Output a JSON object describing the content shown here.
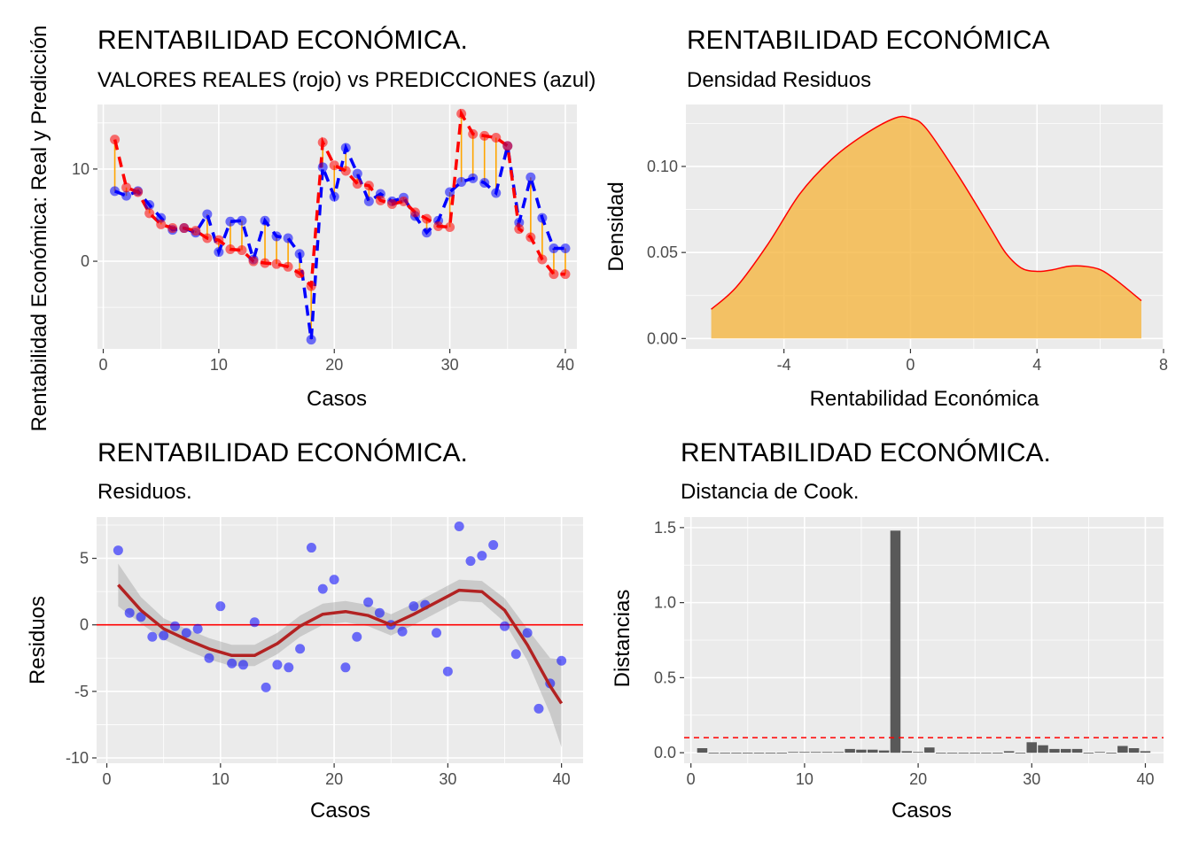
{
  "chart_data": [
    {
      "type": "line",
      "title": "RENTABILIDAD ECONÓMICA.",
      "subtitle": "VALORES REALES (rojo) vs PREDICCIONES (azul)",
      "xlabel": "Casos",
      "ylabel": "Rentabilidad Económica: Real y Predicción",
      "xlim": [
        -0.5,
        41.0
      ],
      "ylim": [
        -9.5,
        17.0
      ],
      "xticks": [
        0,
        10,
        20,
        30,
        40
      ],
      "yticks": [
        0,
        10
      ],
      "grid": true,
      "series": [
        {
          "key": "real",
          "color": "#ff0000",
          "x": [
            1,
            2,
            3,
            4,
            5,
            6,
            7,
            8,
            9,
            10,
            11,
            12,
            13,
            14,
            15,
            16,
            17,
            18,
            19,
            20,
            21,
            22,
            23,
            24,
            25,
            26,
            27,
            28,
            29,
            30,
            31,
            32,
            33,
            34,
            35,
            36,
            37,
            38,
            39,
            40
          ],
          "values": [
            13.2,
            8.0,
            7.5,
            5.2,
            4.0,
            3.6,
            3.6,
            3.3,
            2.5,
            2.3,
            1.3,
            1.2,
            0.0,
            -0.2,
            -0.3,
            -0.6,
            -1.3,
            -2.7,
            12.9,
            10.4,
            9.8,
            8.4,
            8.2,
            6.6,
            6.2,
            6.5,
            5.3,
            4.6,
            3.8,
            3.7,
            16.0,
            13.8,
            13.6,
            13.4,
            12.5,
            3.5,
            2.6,
            0.2,
            -1.4,
            -1.4
          ]
        },
        {
          "key": "prediccion",
          "color": "#0000ff",
          "x": [
            1,
            2,
            3,
            4,
            5,
            6,
            7,
            8,
            9,
            10,
            11,
            12,
            13,
            14,
            15,
            16,
            17,
            18,
            19,
            20,
            21,
            22,
            23,
            24,
            25,
            26,
            27,
            28,
            29,
            30,
            31,
            32,
            33,
            34,
            35,
            36,
            37,
            38,
            39,
            40
          ],
          "values": [
            7.6,
            7.1,
            7.6,
            6.1,
            4.7,
            3.4,
            3.6,
            3.1,
            5.1,
            1.0,
            4.3,
            4.4,
            0.2,
            4.4,
            2.7,
            2.5,
            0.8,
            -8.5,
            10.2,
            7.0,
            12.3,
            9.5,
            6.5,
            7.3,
            6.5,
            6.9,
            4.9,
            3.1,
            4.4,
            7.5,
            8.6,
            9.0,
            8.5,
            7.4,
            12.5,
            4.2,
            9.1,
            4.7,
            1.4,
            1.4
          ]
        }
      ]
    },
    {
      "type": "area",
      "title": "RENTABILIDAD ECONÓMICA",
      "subtitle": "Densidad Residuos",
      "xlabel": "Rentabilidad Económica",
      "ylabel": "Densidad",
      "xlim": [
        -7.1,
        8.0
      ],
      "ylim": [
        -0.006,
        0.136
      ],
      "xticks": [
        -4,
        0,
        4,
        8
      ],
      "yticks": [
        0.0,
        0.05,
        0.1
      ],
      "grid": true,
      "fill_color": "#f5b642",
      "line_color": "#ff0000",
      "x": [
        -6.3,
        -5.5,
        -4.5,
        -3.5,
        -2.5,
        -1.5,
        -0.5,
        0.0,
        0.5,
        1.5,
        2.5,
        3.0,
        3.5,
        4.0,
        4.5,
        5.0,
        5.5,
        6.0,
        6.5,
        7.3
      ],
      "values": [
        0.017,
        0.03,
        0.055,
        0.084,
        0.104,
        0.118,
        0.128,
        0.128,
        0.122,
        0.095,
        0.065,
        0.05,
        0.041,
        0.039,
        0.04,
        0.042,
        0.042,
        0.04,
        0.034,
        0.022
      ]
    },
    {
      "type": "scatter",
      "title": "RENTABILIDAD ECONÓMICA.",
      "subtitle": "Residuos.",
      "xlabel": "Casos",
      "ylabel": "Residuos",
      "xlim": [
        -0.9,
        41.9
      ],
      "ylim": [
        -10.4,
        8.1
      ],
      "xticks": [
        0,
        10,
        20,
        30,
        40
      ],
      "yticks": [
        5,
        0,
        -5,
        -10
      ],
      "grid": true,
      "hline": 0,
      "point_color": "#0000ff",
      "x": [
        1,
        2,
        3,
        4,
        5,
        6,
        7,
        8,
        9,
        10,
        11,
        12,
        13,
        14,
        15,
        16,
        17,
        18,
        19,
        20,
        21,
        22,
        23,
        24,
        25,
        26,
        27,
        28,
        29,
        30,
        31,
        32,
        33,
        34,
        35,
        36,
        37,
        38,
        39,
        40
      ],
      "values": [
        5.6,
        0.9,
        0.6,
        -0.9,
        -0.8,
        -0.1,
        -0.6,
        -0.3,
        -2.5,
        1.4,
        -2.9,
        -3.0,
        0.2,
        -4.7,
        -3.0,
        -3.2,
        -1.8,
        5.8,
        2.7,
        3.4,
        -3.2,
        -0.9,
        1.7,
        0.9,
        0.0,
        -0.5,
        1.4,
        1.5,
        -0.6,
        -3.5,
        7.4,
        4.8,
        5.2,
        6.0,
        -0.1,
        -2.2,
        -0.6,
        -6.3,
        -4.4,
        -2.7
      ],
      "smooth": {
        "color": "#b22222",
        "x": [
          1,
          3,
          5,
          7,
          9,
          11,
          13,
          15,
          17,
          19,
          21,
          23,
          25,
          27,
          29,
          31,
          33,
          35,
          37,
          39,
          40
        ],
        "values": [
          3.0,
          1.1,
          -0.3,
          -1.1,
          -1.8,
          -2.3,
          -2.3,
          -1.4,
          -0.1,
          0.8,
          1.0,
          0.7,
          0.0,
          0.8,
          1.7,
          2.6,
          2.5,
          1.1,
          -1.5,
          -4.6,
          -5.9
        ],
        "se": [
          1.6,
          1.0,
          0.8,
          0.8,
          0.8,
          0.8,
          0.8,
          0.8,
          0.8,
          0.8,
          0.8,
          0.8,
          0.8,
          0.8,
          0.8,
          0.8,
          0.8,
          0.9,
          1.2,
          2.1,
          3.3
        ]
      }
    },
    {
      "type": "bar",
      "title": "RENTABILIDAD ECONÓMICA.",
      "subtitle": "Distancia de Cook.",
      "xlabel": "Casos",
      "ylabel": "Distancias",
      "xlim": [
        -0.6,
        41.6
      ],
      "ylim": [
        -0.07,
        1.57
      ],
      "xticks": [
        0,
        10,
        20,
        30,
        40
      ],
      "yticks": [
        0.0,
        0.5,
        1.0,
        1.5
      ],
      "grid": true,
      "threshold": 0.1,
      "bar_color": "#595959",
      "threshold_color": "#ff0000",
      "x": [
        1,
        2,
        3,
        4,
        5,
        6,
        7,
        8,
        9,
        10,
        11,
        12,
        13,
        14,
        15,
        16,
        17,
        18,
        19,
        20,
        21,
        22,
        23,
        24,
        25,
        26,
        27,
        28,
        29,
        30,
        31,
        32,
        33,
        34,
        35,
        36,
        37,
        38,
        39,
        40
      ],
      "values": [
        0.03,
        0.0,
        0.0,
        0.0,
        0.0,
        0.0,
        0.0,
        0.0,
        0.005,
        0.005,
        0.005,
        0.005,
        0.005,
        0.025,
        0.02,
        0.02,
        0.015,
        1.48,
        0.01,
        0.005,
        0.035,
        0.0,
        0.0,
        0.0,
        0.0,
        0.0,
        0.0,
        0.01,
        0.0,
        0.07,
        0.05,
        0.025,
        0.025,
        0.025,
        0.0,
        0.005,
        0.0,
        0.045,
        0.03,
        0.01
      ]
    }
  ]
}
